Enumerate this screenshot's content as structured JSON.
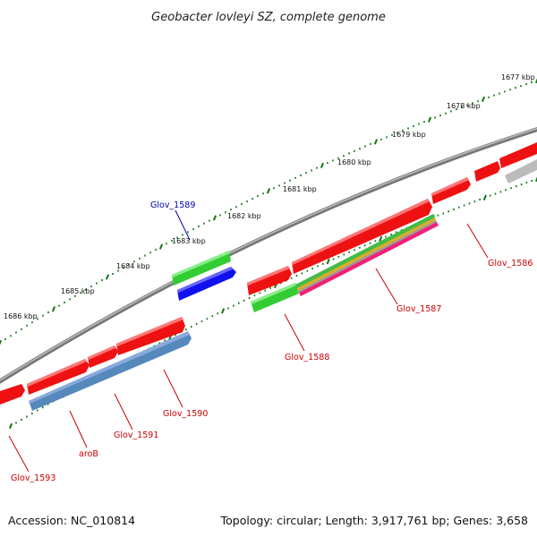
{
  "title": "Geobacter lovleyi SZ, complete genome",
  "footer": {
    "accession": "Accession: NC_010814",
    "summary": "Topology: circular; Length: 3,917,761 bp; Genes: 3,658"
  },
  "kbp_labels": [
    "1677 kbp",
    "1678 kbp",
    "1679 kbp",
    "1680 kbp",
    "1681 kbp",
    "1682 kbp",
    "1683 kbp",
    "1684 kbp",
    "1685 kbp",
    "1686 kbp"
  ],
  "gene_labels": {
    "glov_1586": "Glov_1586",
    "glov_1587": "Glov_1587",
    "glov_1588": "Glov_1588",
    "glov_1589": "Glov_1589",
    "glov_1590": "Glov_1590",
    "glov_1591": "Glov_1591",
    "arob": "aroB",
    "glov_1593": "Glov_1593"
  },
  "colors": {
    "cds_red": "#ee1111",
    "label_red": "#cc0000",
    "label_blue": "#0000aa",
    "gene_green": "#33cc33",
    "gene_blue": "#1111ee",
    "steel_blue": "#5588bb",
    "gray_feature": "#bbbbbb",
    "backbone": "#777777",
    "tick_green": "#117711"
  }
}
